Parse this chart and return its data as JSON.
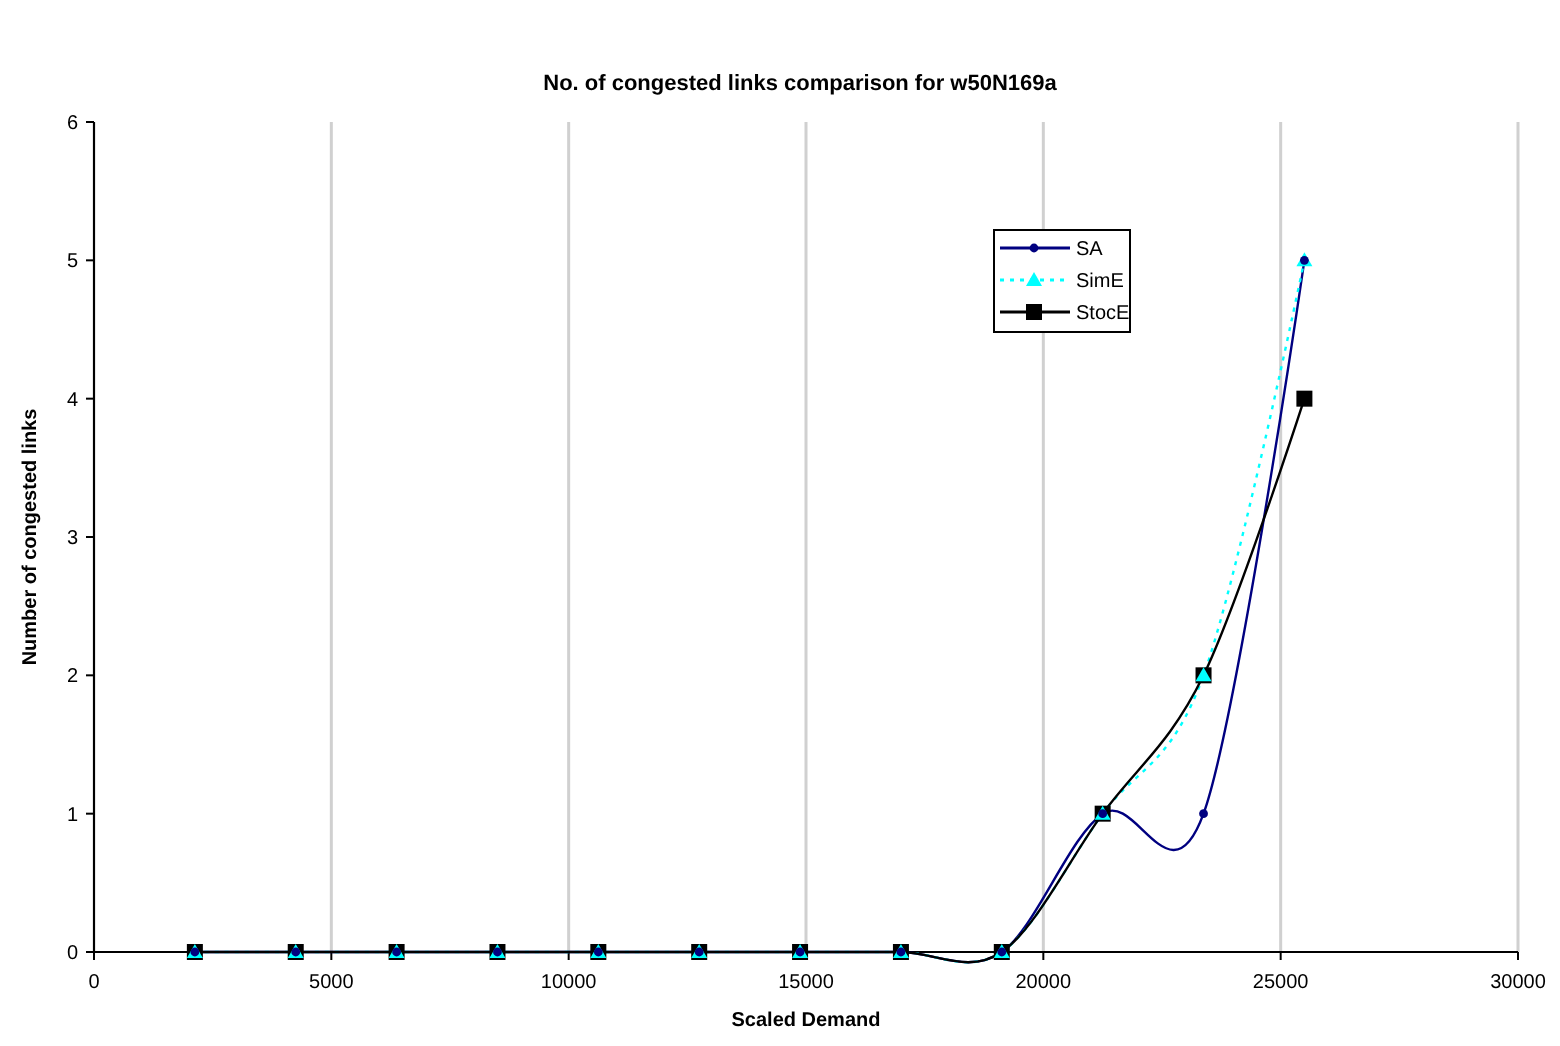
{
  "chart_data": {
    "type": "line",
    "title": "No. of congested links comparison for w50N169a",
    "xlabel": "Scaled Demand",
    "ylabel": "Number of congested links",
    "x": [
      2125,
      4250,
      6375,
      8500,
      10625,
      12750,
      14875,
      17000,
      19125,
      21250,
      23375,
      25500
    ],
    "series": [
      {
        "name": "SA",
        "color": "#000080",
        "marker": "circle",
        "line_style": "solid",
        "values": [
          0,
          0,
          0,
          0,
          0,
          0,
          0,
          0,
          0,
          1,
          1,
          5
        ]
      },
      {
        "name": "SimE",
        "color": "#00ffff",
        "marker": "triangle",
        "line_style": "dotted",
        "values": [
          0,
          0,
          0,
          0,
          0,
          0,
          0,
          0,
          0,
          1,
          2,
          5
        ]
      },
      {
        "name": "StocE",
        "color": "#000000",
        "marker": "square",
        "line_style": "solid",
        "values": [
          0,
          0,
          0,
          0,
          0,
          0,
          0,
          0,
          0,
          1,
          2,
          4
        ]
      }
    ],
    "xlim": [
      0,
      30000
    ],
    "xticks": [
      0,
      5000,
      10000,
      15000,
      20000,
      25000,
      30000
    ],
    "ylim": [
      0,
      6
    ],
    "yticks": [
      0,
      1,
      2,
      3,
      4,
      5,
      6
    ],
    "grid": "x",
    "legend": "top right"
  }
}
